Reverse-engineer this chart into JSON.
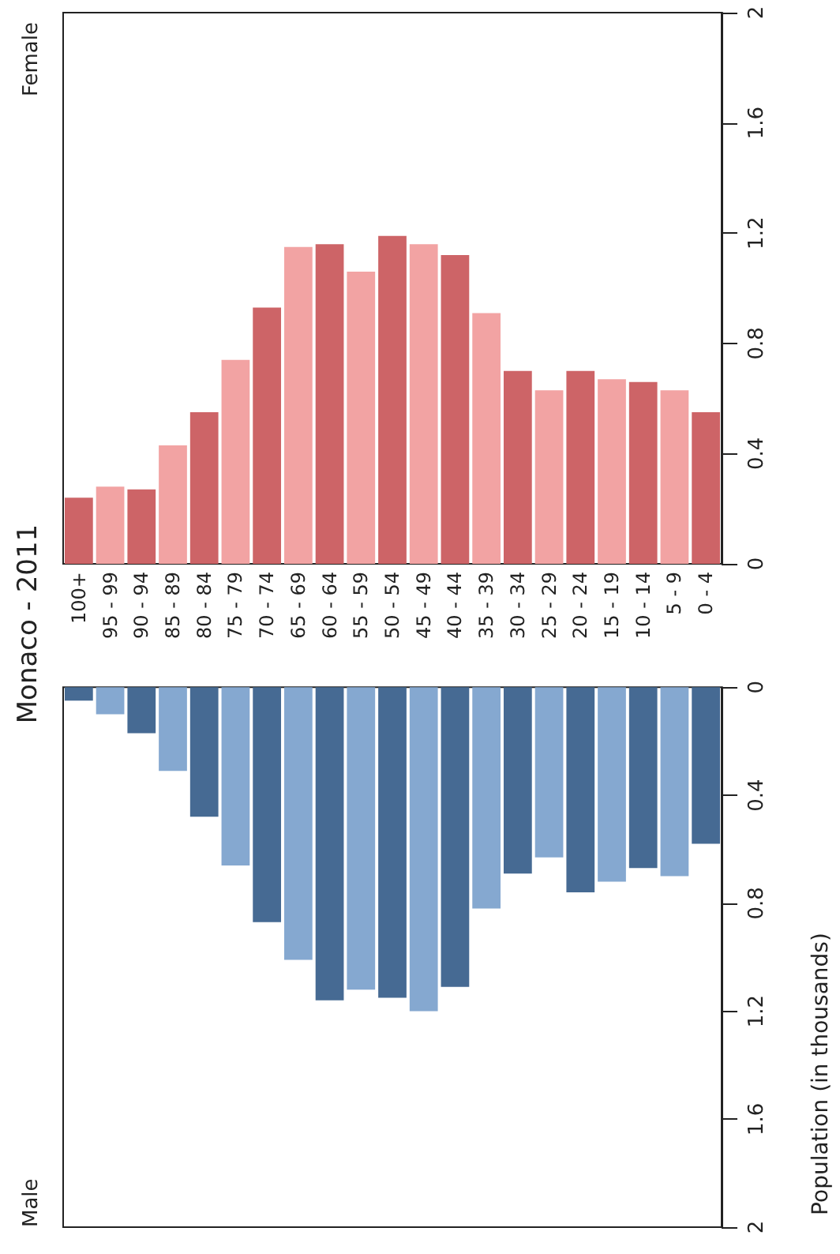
{
  "chart_data": [
    {
      "type": "bar",
      "title": "Monaco - 2011",
      "ylabel": "Population (in thousands)",
      "tick_labels": "y",
      "categories": [
        "100+",
        "95 - 99",
        "90 - 94",
        "85 - 89",
        "80 - 84",
        "75 - 79",
        "70 - 74",
        "65 - 69",
        "60 - 64",
        "55 - 59",
        "50 - 54",
        "45 - 49",
        "40 - 44",
        "35 - 39",
        "30 - 34",
        "25 - 29",
        "20 - 24",
        "15 - 19",
        "10 - 14",
        "5 - 9",
        "0 - 4"
      ],
      "series": [
        {
          "name": "Male",
          "colors": [
            "#466a93",
            "#85a8d0",
            "#466a93",
            "#85a8d0",
            "#466a93",
            "#85a8d0",
            "#466a93",
            "#85a8d0",
            "#466a93",
            "#85a8d0",
            "#466a93",
            "#85a8d0",
            "#466a93",
            "#85a8d0",
            "#466a93",
            "#85a8d0",
            "#466a93",
            "#85a8d0",
            "#466a93",
            "#85a8d0",
            "#466a93"
          ],
          "values": [
            0.05,
            0.1,
            0.17,
            0.31,
            0.48,
            0.66,
            0.87,
            1.01,
            1.16,
            1.12,
            1.15,
            1.2,
            1.11,
            0.82,
            0.69,
            0.63,
            0.76,
            0.72,
            0.67,
            0.7,
            0.58
          ]
        }
      ],
      "ylim": [
        2,
        0
      ],
      "yticks": [
        0,
        0.4,
        0.8,
        1.2,
        1.6,
        2
      ]
    },
    {
      "type": "bar",
      "categories": [
        "100+",
        "95 - 99",
        "90 - 94",
        "85 - 89",
        "80 - 84",
        "75 - 79",
        "70 - 74",
        "65 - 69",
        "60 - 64",
        "55 - 59",
        "50 - 54",
        "45 - 49",
        "40 - 44",
        "35 - 39",
        "30 - 34",
        "25 - 29",
        "20 - 24",
        "15 - 19",
        "10 - 14",
        "5 - 9",
        "0 - 4"
      ],
      "series": [
        {
          "name": "Female",
          "colors": [
            "#cd6467",
            "#f2a3a3",
            "#cd6467",
            "#f2a3a3",
            "#cd6467",
            "#f2a3a3",
            "#cd6467",
            "#f2a3a3",
            "#cd6467",
            "#f2a3a3",
            "#cd6467",
            "#f2a3a3",
            "#cd6467",
            "#f2a3a3",
            "#cd6467",
            "#f2a3a3",
            "#cd6467",
            "#f2a3a3",
            "#cd6467",
            "#f2a3a3",
            "#cd6467"
          ],
          "values": [
            0.24,
            0.28,
            0.27,
            0.43,
            0.55,
            0.74,
            0.93,
            1.15,
            1.16,
            1.06,
            1.19,
            1.16,
            1.12,
            0.91,
            0.7,
            0.63,
            0.7,
            0.67,
            0.66,
            0.63,
            0.55
          ]
        }
      ],
      "ylim": [
        0,
        2
      ],
      "yticks": [
        0,
        0.4,
        0.8,
        1.2,
        1.6,
        2
      ]
    }
  ]
}
